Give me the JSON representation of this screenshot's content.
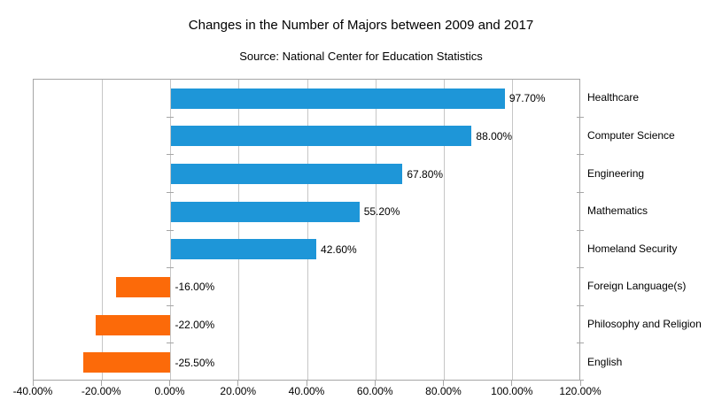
{
  "chart_data": {
    "type": "bar",
    "orientation": "horizontal",
    "title": "Changes in the Number of Majors between 2009 and 2017",
    "subtitle": "Source: National Center for Education Statistics",
    "categories": [
      "Healthcare",
      "Computer Science",
      "Engineering",
      "Mathematics",
      "Homeland Security",
      "Foreign Language(s)",
      "Philosophy and Religion",
      "English"
    ],
    "values": [
      97.7,
      88.0,
      67.8,
      55.2,
      42.6,
      -16.0,
      -22.0,
      -25.5
    ],
    "value_labels": [
      "97.70%",
      "88.00%",
      "67.80%",
      "55.20%",
      "42.60%",
      "-16.00%",
      "-22.00%",
      "-25.50%"
    ],
    "xlabel": "",
    "ylabel": "",
    "xlim": [
      -40,
      120
    ],
    "x_ticks": [
      -40,
      -20,
      0,
      20,
      40,
      60,
      80,
      100,
      120
    ],
    "x_tick_labels": [
      "-40.00%",
      "-20.00%",
      "0.00%",
      "20.00%",
      "40.00%",
      "60.00%",
      "80.00%",
      "100.00%",
      "120.00%"
    ],
    "grid": "vertical-only",
    "legend": "none",
    "category_labels_position": "right",
    "positive_color": "#1e96d8",
    "negative_color": "#fc6a09",
    "gridline_color": "#c6c6c6",
    "border_color": "#a6a6a6"
  }
}
